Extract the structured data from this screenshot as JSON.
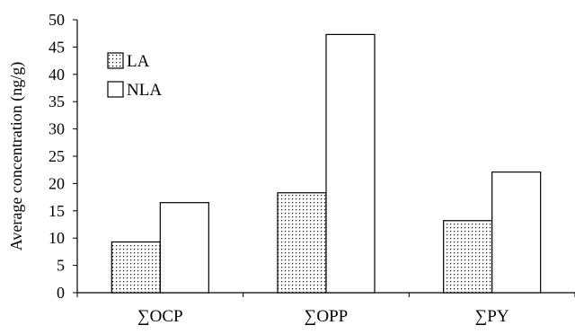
{
  "chart_data": {
    "type": "bar",
    "categories": [
      "∑OCP",
      "∑OPP",
      "∑PY"
    ],
    "series": [
      {
        "name": "LA",
        "values": [
          9.3,
          18.3,
          13.2
        ]
      },
      {
        "name": "NLA",
        "values": [
          16.5,
          47.3,
          22.1
        ]
      }
    ],
    "title": "",
    "xlabel": "",
    "ylabel": "Average concentration  (ng/g)",
    "ylim": [
      0,
      50
    ],
    "yticks": [
      0,
      5,
      10,
      15,
      20,
      25,
      30,
      35,
      40,
      45,
      50
    ],
    "grid": false,
    "legend_position": "top-left"
  }
}
